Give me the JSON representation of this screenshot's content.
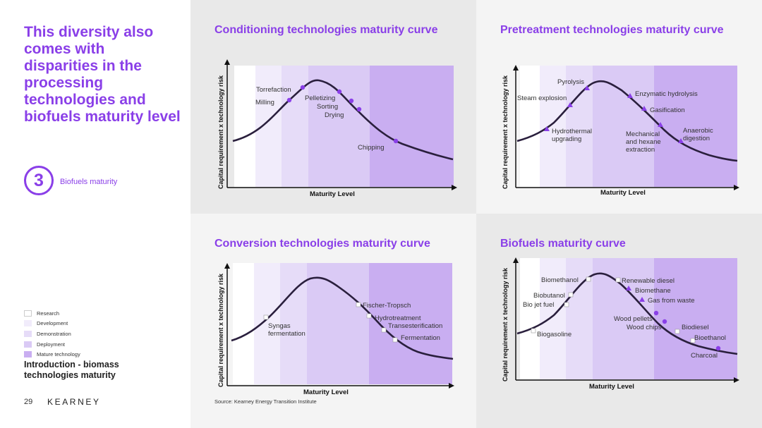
{
  "slide": {
    "title": "This diversity also comes with disparities in the processing technologies and biofuels maturity level",
    "section_number": "3",
    "section_label": "Biofuels maturity",
    "intro": "Introduction - biomass technologies maturity",
    "page_number": "29",
    "logo": "KEARNEY",
    "source": "Source: Kearney Energy Transition Institute"
  },
  "legend": [
    {
      "label": "Research",
      "color": "#ffffff"
    },
    {
      "label": "Development",
      "color": "#f1ecfb"
    },
    {
      "label": "Demonstration",
      "color": "#e6dcf8"
    },
    {
      "label": "Deployment",
      "color": "#dacaf5"
    },
    {
      "label": "Mature technology",
      "color": "#c9aef1"
    }
  ],
  "colors": {
    "accent": "#8a3fe8",
    "curve": "#2a1f3d"
  },
  "axes": {
    "y_label": "Capital requirement x technology risk",
    "x_label": "Maturity Level"
  },
  "panels": [
    {
      "title": "Conditioning technologies maturity curve",
      "marker": "circle",
      "labels": [
        "Torrefaction",
        "Milling",
        "Pelletizing",
        "Sorting",
        "Drying",
        "Chipping"
      ]
    },
    {
      "title": "Pretreatment technologies maturity curve",
      "marker": "triangle",
      "labels": [
        "Pyrolysis",
        "Steam explosion",
        "Enzymatic hydrolysis",
        "Gasification",
        "Hydrothermal",
        "upgrading",
        "Mechanical",
        "and hexane",
        "extraction",
        "Anaerobic",
        "digestion"
      ]
    },
    {
      "title": "Conversion technologies maturity curve",
      "marker": "square",
      "labels": [
        "Syngas",
        "fermentation",
        "Fischer-Tropsch",
        "Hydrotreatment",
        "Transesterification",
        "Fermentation"
      ]
    },
    {
      "title": "Biofuels maturity curve",
      "marker": "mixed",
      "labels": [
        "Biomethanol",
        "Renewable diesel",
        "Biomethane",
        "Biobutanol",
        "Bio jet fuel",
        "Gas from waste",
        "Wood pellets",
        "Wood chips",
        "Biodiesel",
        "Biogasoline",
        "Bioethanol",
        "Charcoal"
      ]
    }
  ]
}
